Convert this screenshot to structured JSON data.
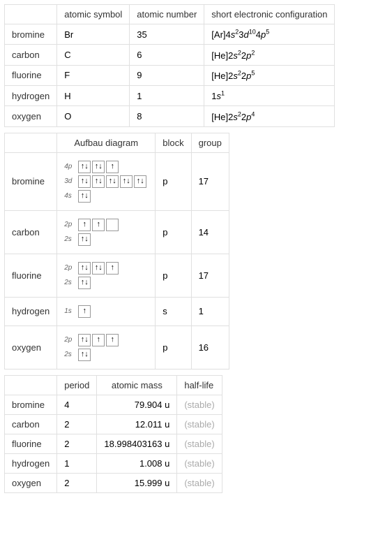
{
  "table1": {
    "headers": [
      "",
      "atomic symbol",
      "atomic number",
      "short electronic configuration"
    ],
    "rows": [
      {
        "label": "bromine",
        "symbol": "Br",
        "number": "35",
        "config": {
          "prefix": "[Ar]4",
          "parts": [
            {
              "l": "s",
              "e": "2"
            },
            {
              "pre": "3",
              "l": "d",
              "e": "10"
            },
            {
              "pre": "4",
              "l": "p",
              "e": "5"
            }
          ]
        }
      },
      {
        "label": "carbon",
        "symbol": "C",
        "number": "6",
        "config": {
          "prefix": "[He]2",
          "parts": [
            {
              "l": "s",
              "e": "2"
            },
            {
              "pre": "2",
              "l": "p",
              "e": "2"
            }
          ]
        }
      },
      {
        "label": "fluorine",
        "symbol": "F",
        "number": "9",
        "config": {
          "prefix": "[He]2",
          "parts": [
            {
              "l": "s",
              "e": "2"
            },
            {
              "pre": "2",
              "l": "p",
              "e": "5"
            }
          ]
        }
      },
      {
        "label": "hydrogen",
        "symbol": "H",
        "number": "1",
        "config": {
          "prefix": "1",
          "parts": [
            {
              "l": "s",
              "e": "1"
            }
          ]
        }
      },
      {
        "label": "oxygen",
        "symbol": "O",
        "number": "8",
        "config": {
          "prefix": "[He]2",
          "parts": [
            {
              "l": "s",
              "e": "2"
            },
            {
              "pre": "2",
              "l": "p",
              "e": "4"
            }
          ]
        }
      }
    ]
  },
  "table2": {
    "headers": [
      "",
      "Aufbau diagram",
      "block",
      "group"
    ],
    "rows": [
      {
        "label": "bromine",
        "aufbau": [
          {
            "label": "4p",
            "boxes": [
              "↑↓",
              "↑↓",
              "↑"
            ]
          },
          {
            "label": "3d",
            "boxes": [
              "↑↓",
              "↑↓",
              "↑↓",
              "↑↓",
              "↑↓"
            ]
          },
          {
            "label": "4s",
            "boxes": [
              "↑↓"
            ]
          }
        ],
        "block": "p",
        "group": "17"
      },
      {
        "label": "carbon",
        "aufbau": [
          {
            "label": "2p",
            "boxes": [
              "↑",
              "↑",
              ""
            ]
          },
          {
            "label": "2s",
            "boxes": [
              "↑↓"
            ]
          }
        ],
        "block": "p",
        "group": "14"
      },
      {
        "label": "fluorine",
        "aufbau": [
          {
            "label": "2p",
            "boxes": [
              "↑↓",
              "↑↓",
              "↑"
            ]
          },
          {
            "label": "2s",
            "boxes": [
              "↑↓"
            ]
          }
        ],
        "block": "p",
        "group": "17"
      },
      {
        "label": "hydrogen",
        "aufbau": [
          {
            "label": "1s",
            "boxes": [
              "↑"
            ]
          }
        ],
        "block": "s",
        "group": "1"
      },
      {
        "label": "oxygen",
        "aufbau": [
          {
            "label": "2p",
            "boxes": [
              "↑↓",
              "↑",
              "↑"
            ]
          },
          {
            "label": "2s",
            "boxes": [
              "↑↓"
            ]
          }
        ],
        "block": "p",
        "group": "16"
      }
    ]
  },
  "table3": {
    "headers": [
      "",
      "period",
      "atomic mass",
      "half-life"
    ],
    "rows": [
      {
        "label": "bromine",
        "period": "4",
        "mass": "79.904 u",
        "half": "(stable)"
      },
      {
        "label": "carbon",
        "period": "2",
        "mass": "12.011 u",
        "half": "(stable)"
      },
      {
        "label": "fluorine",
        "period": "2",
        "mass": "18.998403163 u",
        "half": "(stable)"
      },
      {
        "label": "hydrogen",
        "period": "1",
        "mass": "1.008 u",
        "half": "(stable)"
      },
      {
        "label": "oxygen",
        "period": "2",
        "mass": "15.999 u",
        "half": "(stable)"
      }
    ]
  },
  "style": {
    "border_color": "#e0e0e0",
    "text_color": "#333",
    "stable_color": "#aaa",
    "orbital_border": "#999",
    "orbital_label_color": "#666",
    "font_size_cell": 13,
    "font_size_sup": 9,
    "font_size_orbital_label": 10
  }
}
